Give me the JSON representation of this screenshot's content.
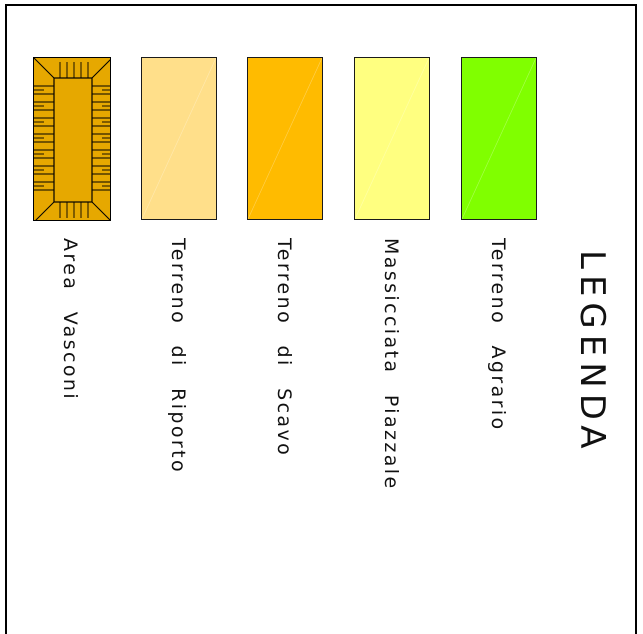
{
  "legend": {
    "title": "LEGENDA",
    "items": [
      {
        "label": "Area Vasconi",
        "color": "#e6a800",
        "pattern": "hatched-border"
      },
      {
        "label": "Terreno di Riporto",
        "color": "#ffdf8a"
      },
      {
        "label": "Terreno di Scavo",
        "color": "#ffbb00"
      },
      {
        "label": "Massicciata Piazzale",
        "color": "#ffff80"
      },
      {
        "label": "Terreno Agrario",
        "color": "#80ff00"
      }
    ]
  }
}
